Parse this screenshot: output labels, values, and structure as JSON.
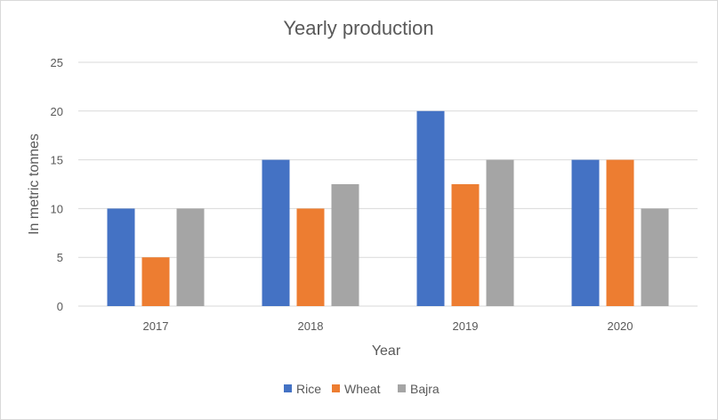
{
  "chart_data": {
    "type": "bar",
    "title": "Yearly production",
    "xlabel": "Year",
    "ylabel": "In metric tonnes",
    "categories": [
      "2017",
      "2018",
      "2019",
      "2020"
    ],
    "series": [
      {
        "name": "Rice",
        "values": [
          10,
          15,
          20,
          15
        ],
        "color": "#4472C4"
      },
      {
        "name": "Wheat",
        "values": [
          5,
          10,
          12.5,
          15
        ],
        "color": "#ED7D31"
      },
      {
        "name": "Bajra",
        "values": [
          10,
          12.5,
          15,
          10
        ],
        "color": "#A5A5A5"
      }
    ],
    "ylim": [
      0,
      25
    ],
    "yticks": [
      "0",
      "5",
      "10",
      "15",
      "20",
      "25"
    ],
    "grid": true,
    "legend": "bottom"
  }
}
